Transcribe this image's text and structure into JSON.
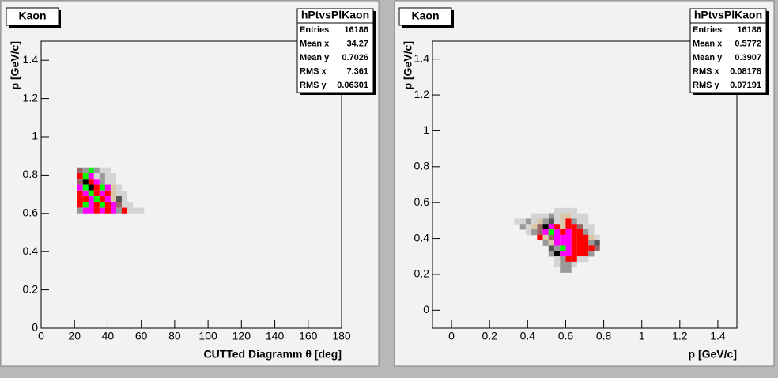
{
  "chart_data": [
    {
      "type": "heatmap",
      "title": "Kaon",
      "x_label": "CUTTed Diagramm  θ [deg]",
      "y_label": "p  [GeV/c]",
      "xlim": [
        0,
        180
      ],
      "ylim": [
        0,
        1.5
      ],
      "xticks": [
        0,
        20,
        40,
        60,
        80,
        100,
        120,
        140,
        160,
        180
      ],
      "yticks": [
        0,
        0.2,
        0.4,
        0.6,
        0.8,
        1,
        1.2,
        1.4
      ],
      "stats": {
        "name": "hPtvsPlKaon",
        "rows": [
          {
            "label": "Entries",
            "value": 16186
          },
          {
            "label": "Mean x",
            "value": 34.27
          },
          {
            "label": "Mean y",
            "value": 0.7026
          },
          {
            "label": "RMS x",
            "value": 7.361
          },
          {
            "label": "RMS y",
            "value": 0.06301
          }
        ]
      },
      "cells": [
        [
          23.3,
          0.825,
          "#996666"
        ],
        [
          26.7,
          0.825,
          "#999999"
        ],
        [
          30,
          0.825,
          "#00ff00"
        ],
        [
          33.3,
          0.825,
          "#999999"
        ],
        [
          36.7,
          0.825,
          "#d4d4d4"
        ],
        [
          40,
          0.825,
          "#d4d4d4"
        ],
        [
          23.3,
          0.795,
          "#ff0000"
        ],
        [
          26.7,
          0.795,
          "#00ff00"
        ],
        [
          30,
          0.795,
          "#ff00ff"
        ],
        [
          33.3,
          0.795,
          "#d4d4d4"
        ],
        [
          36.7,
          0.795,
          "#999999"
        ],
        [
          40,
          0.795,
          "#d4d4d4"
        ],
        [
          43.3,
          0.795,
          "#d4d4d4"
        ],
        [
          23.3,
          0.765,
          "#996666"
        ],
        [
          26.7,
          0.765,
          "#000000"
        ],
        [
          30,
          0.765,
          "#ff0000"
        ],
        [
          33.3,
          0.765,
          "#ff00ff"
        ],
        [
          36.7,
          0.765,
          "#999999"
        ],
        [
          40,
          0.765,
          "#d4d4d4"
        ],
        [
          43.3,
          0.765,
          "#d4d4d4"
        ],
        [
          23.3,
          0.735,
          "#ff00ff"
        ],
        [
          26.7,
          0.735,
          "#00ff00"
        ],
        [
          30,
          0.735,
          "#000000"
        ],
        [
          33.3,
          0.735,
          "#ff0000"
        ],
        [
          36.7,
          0.735,
          "#00ff00"
        ],
        [
          40,
          0.735,
          "#ff00ff"
        ],
        [
          43.3,
          0.735,
          "#d8c8a8"
        ],
        [
          46.7,
          0.735,
          "#d4d4d4"
        ],
        [
          23.3,
          0.705,
          "#ff0000"
        ],
        [
          26.7,
          0.705,
          "#ff00ff"
        ],
        [
          30,
          0.705,
          "#00ff00"
        ],
        [
          33.3,
          0.705,
          "#ff0000"
        ],
        [
          36.7,
          0.705,
          "#ff00ff"
        ],
        [
          40,
          0.705,
          "#ff0000"
        ],
        [
          43.3,
          0.705,
          "#d8c8a8"
        ],
        [
          46.7,
          0.705,
          "#d4d4d4"
        ],
        [
          50,
          0.705,
          "#d4d4d4"
        ],
        [
          23.3,
          0.675,
          "#ff0000"
        ],
        [
          26.7,
          0.675,
          "#ff0000"
        ],
        [
          30,
          0.675,
          "#ff00ff"
        ],
        [
          33.3,
          0.675,
          "#00ff00"
        ],
        [
          36.7,
          0.675,
          "#ff0000"
        ],
        [
          40,
          0.675,
          "#ff00ff"
        ],
        [
          43.3,
          0.675,
          "#d8c8a8"
        ],
        [
          46.7,
          0.675,
          "#555555"
        ],
        [
          50,
          0.675,
          "#d4d4d4"
        ],
        [
          23.3,
          0.645,
          "#ff0000"
        ],
        [
          26.7,
          0.645,
          "#00ff00"
        ],
        [
          30,
          0.645,
          "#ff00ff"
        ],
        [
          33.3,
          0.645,
          "#ff0000"
        ],
        [
          36.7,
          0.645,
          "#00ff00"
        ],
        [
          40,
          0.645,
          "#ff0000"
        ],
        [
          43.3,
          0.645,
          "#ff00ff"
        ],
        [
          46.7,
          0.645,
          "#996666"
        ],
        [
          50,
          0.645,
          "#d4d4d4"
        ],
        [
          53.3,
          0.645,
          "#d4d4d4"
        ],
        [
          23.3,
          0.615,
          "#999999"
        ],
        [
          26.7,
          0.615,
          "#ff00ff"
        ],
        [
          30,
          0.615,
          "#ff00ff"
        ],
        [
          33.3,
          0.615,
          "#ff0000"
        ],
        [
          36.7,
          0.615,
          "#ff00ff"
        ],
        [
          40,
          0.615,
          "#ff0000"
        ],
        [
          43.3,
          0.615,
          "#ff00ff"
        ],
        [
          46.7,
          0.615,
          "#999999"
        ],
        [
          50,
          0.615,
          "#ff0000"
        ],
        [
          53.3,
          0.615,
          "#d4d4d4"
        ],
        [
          56.7,
          0.615,
          "#d4d4d4"
        ],
        [
          60,
          0.615,
          "#d4d4d4"
        ]
      ]
    },
    {
      "type": "heatmap",
      "title": "Kaon",
      "x_label": "p  [GeV/c]",
      "y_label": "p  [GeV/c]",
      "xlim": [
        -0.1,
        1.5
      ],
      "ylim": [
        -0.1,
        1.5
      ],
      "xticks": [
        0,
        0.2,
        0.4,
        0.6,
        0.8,
        1,
        1.2,
        1.4
      ],
      "yticks": [
        0,
        0.2,
        0.4,
        0.6,
        0.8,
        1,
        1.2,
        1.4
      ],
      "stats": {
        "name": "hPtvsPlKaon",
        "rows": [
          {
            "label": "Entries",
            "value": 16186
          },
          {
            "label": "Mean x",
            "value": 0.5772
          },
          {
            "label": "Mean y",
            "value": 0.3907
          },
          {
            "label": "RMS x",
            "value": 0.08178
          },
          {
            "label": "RMS y",
            "value": 0.07191
          }
        ]
      },
      "cells": [
        [
          0.555,
          0.555,
          "#d4d4d4"
        ],
        [
          0.585,
          0.555,
          "#d4d4d4"
        ],
        [
          0.615,
          0.555,
          "#d4d4d4"
        ],
        [
          0.645,
          0.555,
          "#d4d4d4"
        ],
        [
          0.435,
          0.525,
          "#d4d4d4"
        ],
        [
          0.465,
          0.525,
          "#d4d4d4"
        ],
        [
          0.495,
          0.525,
          "#d4d4d4"
        ],
        [
          0.525,
          0.525,
          "#999999"
        ],
        [
          0.555,
          0.525,
          "#d4d4d4"
        ],
        [
          0.585,
          0.525,
          "#d8c8a8"
        ],
        [
          0.615,
          0.525,
          "#d8c8a8"
        ],
        [
          0.645,
          0.525,
          "#d4d4d4"
        ],
        [
          0.675,
          0.525,
          "#d4d4d4"
        ],
        [
          0.705,
          0.525,
          "#d4d4d4"
        ],
        [
          0.345,
          0.495,
          "#d4d4d4"
        ],
        [
          0.375,
          0.495,
          "#d4d4d4"
        ],
        [
          0.405,
          0.495,
          "#999999"
        ],
        [
          0.435,
          0.495,
          "#d4d4d4"
        ],
        [
          0.465,
          0.495,
          "#d8c8a8"
        ],
        [
          0.495,
          0.495,
          "#999999"
        ],
        [
          0.525,
          0.495,
          "#555555"
        ],
        [
          0.555,
          0.495,
          "#d4d4d4"
        ],
        [
          0.585,
          0.495,
          "#d8c8a8"
        ],
        [
          0.615,
          0.495,
          "#ff0000"
        ],
        [
          0.645,
          0.495,
          "#999999"
        ],
        [
          0.675,
          0.495,
          "#d4d4d4"
        ],
        [
          0.705,
          0.495,
          "#d4d4d4"
        ],
        [
          0.375,
          0.465,
          "#999999"
        ],
        [
          0.405,
          0.465,
          "#d4d4d4"
        ],
        [
          0.435,
          0.465,
          "#d8c8a8"
        ],
        [
          0.465,
          0.465,
          "#996666"
        ],
        [
          0.495,
          0.465,
          "#000000"
        ],
        [
          0.525,
          0.465,
          "#ff00ff"
        ],
        [
          0.555,
          0.465,
          "#ff0000"
        ],
        [
          0.585,
          0.465,
          "#d8c8a8"
        ],
        [
          0.615,
          0.465,
          "#ff0000"
        ],
        [
          0.645,
          0.465,
          "#ff0000"
        ],
        [
          0.675,
          0.465,
          "#996666"
        ],
        [
          0.705,
          0.465,
          "#d4d4d4"
        ],
        [
          0.735,
          0.465,
          "#d4d4d4"
        ],
        [
          0.405,
          0.435,
          "#d4d4d4"
        ],
        [
          0.435,
          0.435,
          "#999999"
        ],
        [
          0.465,
          0.435,
          "#996666"
        ],
        [
          0.495,
          0.435,
          "#ff00ff"
        ],
        [
          0.525,
          0.435,
          "#00ff00"
        ],
        [
          0.555,
          0.435,
          "#ff00ff"
        ],
        [
          0.585,
          0.435,
          "#ff0000"
        ],
        [
          0.615,
          0.435,
          "#ff00ff"
        ],
        [
          0.645,
          0.435,
          "#ff0000"
        ],
        [
          0.675,
          0.435,
          "#ff0000"
        ],
        [
          0.705,
          0.435,
          "#999999"
        ],
        [
          0.735,
          0.435,
          "#d4d4d4"
        ],
        [
          0.465,
          0.405,
          "#ff0000"
        ],
        [
          0.495,
          0.405,
          "#d8c8a8"
        ],
        [
          0.525,
          0.405,
          "#996666"
        ],
        [
          0.555,
          0.405,
          "#ff00ff"
        ],
        [
          0.585,
          0.405,
          "#ff00ff"
        ],
        [
          0.615,
          0.405,
          "#ff00ff"
        ],
        [
          0.645,
          0.405,
          "#ff0000"
        ],
        [
          0.675,
          0.405,
          "#ff0000"
        ],
        [
          0.705,
          0.405,
          "#ff0000"
        ],
        [
          0.735,
          0.405,
          "#d8c8a8"
        ],
        [
          0.765,
          0.405,
          "#d4d4d4"
        ],
        [
          0.495,
          0.375,
          "#999999"
        ],
        [
          0.525,
          0.375,
          "#d8c8a8"
        ],
        [
          0.555,
          0.375,
          "#ff00ff"
        ],
        [
          0.585,
          0.375,
          "#ff00ff"
        ],
        [
          0.615,
          0.375,
          "#ff00ff"
        ],
        [
          0.645,
          0.375,
          "#ff0000"
        ],
        [
          0.675,
          0.375,
          "#ff0000"
        ],
        [
          0.705,
          0.375,
          "#ff0000"
        ],
        [
          0.735,
          0.375,
          "#999999"
        ],
        [
          0.765,
          0.375,
          "#555555"
        ],
        [
          0.525,
          0.345,
          "#555555"
        ],
        [
          0.555,
          0.345,
          "#999999"
        ],
        [
          0.585,
          0.345,
          "#00ff00"
        ],
        [
          0.615,
          0.345,
          "#ff00ff"
        ],
        [
          0.645,
          0.345,
          "#ff0000"
        ],
        [
          0.675,
          0.345,
          "#ff0000"
        ],
        [
          0.705,
          0.345,
          "#ff0000"
        ],
        [
          0.735,
          0.345,
          "#ff0000"
        ],
        [
          0.765,
          0.345,
          "#996666"
        ],
        [
          0.525,
          0.315,
          "#999999"
        ],
        [
          0.555,
          0.315,
          "#000000"
        ],
        [
          0.585,
          0.315,
          "#ff00ff"
        ],
        [
          0.615,
          0.315,
          "#ff00ff"
        ],
        [
          0.645,
          0.315,
          "#ff0000"
        ],
        [
          0.675,
          0.315,
          "#ff0000"
        ],
        [
          0.705,
          0.315,
          "#ff0000"
        ],
        [
          0.735,
          0.315,
          "#999999"
        ],
        [
          0.555,
          0.285,
          "#d4d4d4"
        ],
        [
          0.585,
          0.285,
          "#999999"
        ],
        [
          0.615,
          0.285,
          "#ff0000"
        ],
        [
          0.645,
          0.285,
          "#ff0000"
        ],
        [
          0.675,
          0.285,
          "#d4d4d4"
        ],
        [
          0.705,
          0.285,
          "#d4d4d4"
        ],
        [
          0.555,
          0.255,
          "#d4d4d4"
        ],
        [
          0.585,
          0.255,
          "#999999"
        ],
        [
          0.615,
          0.255,
          "#999999"
        ],
        [
          0.645,
          0.255,
          "#d4d4d4"
        ],
        [
          0.585,
          0.225,
          "#999999"
        ],
        [
          0.615,
          0.225,
          "#999999"
        ]
      ]
    }
  ]
}
